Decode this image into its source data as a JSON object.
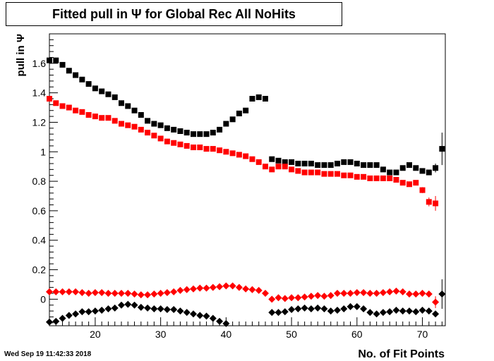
{
  "title": "Fitted pull in  Ψ  for Global Rec All NoHits",
  "timestamp": "Wed Sep 19 11:42:33 2018",
  "chart_data": {
    "type": "scatter",
    "xlabel": "No. of Fit Points",
    "ylabel": "pull in  Ψ",
    "xlim": [
      13,
      73.5
    ],
    "ylim": [
      -0.18,
      1.8
    ],
    "xticks": [
      "20",
      "30",
      "40",
      "50",
      "60",
      "70"
    ],
    "yticks": [
      "0",
      "0.2",
      "0.4",
      "0.6",
      "0.8",
      "1",
      "1.2",
      "1.4",
      "1.6"
    ],
    "xtick_values": [
      20,
      30,
      40,
      50,
      60,
      70
    ],
    "ytick_values": [
      0,
      0.2,
      0.4,
      0.6,
      0.8,
      1,
      1.2,
      1.4,
      1.6
    ],
    "grid": false,
    "series": [
      {
        "marker": "square",
        "color": "#000000",
        "x": [
          13,
          14,
          15,
          16,
          17,
          18,
          19,
          20,
          21,
          22,
          23,
          24,
          25,
          26,
          27,
          28,
          29,
          30,
          31,
          32,
          33,
          34,
          35,
          36,
          37,
          38,
          39,
          40,
          41,
          42,
          43,
          44,
          45,
          46,
          47,
          48,
          49,
          50,
          51,
          52,
          53,
          54,
          55,
          56,
          57,
          58,
          59,
          60,
          61,
          62,
          63,
          64,
          65,
          66,
          67,
          68,
          69,
          70,
          71,
          72,
          73
        ],
        "y": [
          1.62,
          1.62,
          1.59,
          1.55,
          1.52,
          1.49,
          1.46,
          1.43,
          1.41,
          1.39,
          1.37,
          1.33,
          1.31,
          1.28,
          1.25,
          1.21,
          1.19,
          1.18,
          1.16,
          1.15,
          1.14,
          1.13,
          1.12,
          1.12,
          1.12,
          1.13,
          1.15,
          1.19,
          1.22,
          1.26,
          1.28,
          1.36,
          1.37,
          1.36,
          0.95,
          0.94,
          0.93,
          0.93,
          0.92,
          0.92,
          0.92,
          0.91,
          0.91,
          0.91,
          0.92,
          0.93,
          0.93,
          0.92,
          0.91,
          0.91,
          0.91,
          0.88,
          0.86,
          0.86,
          0.89,
          0.91,
          0.89,
          0.87,
          0.86,
          0.89,
          1.02
        ],
        "err": [
          0,
          0,
          0,
          0,
          0,
          0,
          0,
          0,
          0,
          0,
          0,
          0,
          0,
          0,
          0,
          0,
          0,
          0,
          0,
          0,
          0,
          0,
          0,
          0,
          0,
          0,
          0,
          0,
          0,
          0,
          0,
          0,
          0,
          0,
          0,
          0,
          0,
          0,
          0,
          0,
          0,
          0,
          0,
          0,
          0,
          0,
          0,
          0,
          0,
          0,
          0,
          0,
          0,
          0,
          0,
          0,
          0,
          0,
          0,
          0.03,
          0.11
        ]
      },
      {
        "marker": "square",
        "color": "#ff0000",
        "x": [
          13,
          14,
          15,
          16,
          17,
          18,
          19,
          20,
          21,
          22,
          23,
          24,
          25,
          26,
          27,
          28,
          29,
          30,
          31,
          32,
          33,
          34,
          35,
          36,
          37,
          38,
          39,
          40,
          41,
          42,
          43,
          44,
          45,
          46,
          47,
          48,
          49,
          50,
          51,
          52,
          53,
          54,
          55,
          56,
          57,
          58,
          59,
          60,
          61,
          62,
          63,
          64,
          65,
          66,
          67,
          68,
          69,
          70,
          71,
          72
        ],
        "y": [
          1.36,
          1.33,
          1.31,
          1.3,
          1.28,
          1.27,
          1.25,
          1.24,
          1.23,
          1.23,
          1.21,
          1.19,
          1.18,
          1.17,
          1.15,
          1.13,
          1.11,
          1.09,
          1.07,
          1.06,
          1.05,
          1.04,
          1.03,
          1.03,
          1.02,
          1.02,
          1.01,
          1.0,
          0.99,
          0.98,
          0.97,
          0.95,
          0.93,
          0.9,
          0.88,
          0.9,
          0.9,
          0.88,
          0.87,
          0.86,
          0.86,
          0.86,
          0.85,
          0.85,
          0.85,
          0.84,
          0.84,
          0.83,
          0.83,
          0.82,
          0.82,
          0.82,
          0.82,
          0.81,
          0.79,
          0.78,
          0.79,
          0.74,
          0.66,
          0.65
        ],
        "err": [
          0,
          0,
          0,
          0,
          0,
          0,
          0,
          0,
          0,
          0,
          0,
          0,
          0,
          0,
          0,
          0,
          0,
          0,
          0,
          0,
          0,
          0,
          0,
          0,
          0,
          0,
          0,
          0,
          0,
          0,
          0,
          0,
          0,
          0,
          0,
          0,
          0,
          0,
          0,
          0,
          0,
          0,
          0,
          0,
          0,
          0,
          0,
          0,
          0,
          0,
          0,
          0,
          0,
          0,
          0,
          0,
          0,
          0.02,
          0.03,
          0.05
        ]
      },
      {
        "marker": "diamond",
        "color": "#ff0000",
        "x": [
          13,
          14,
          15,
          16,
          17,
          18,
          19,
          20,
          21,
          22,
          23,
          24,
          25,
          26,
          27,
          28,
          29,
          30,
          31,
          32,
          33,
          34,
          35,
          36,
          37,
          38,
          39,
          40,
          41,
          42,
          43,
          44,
          45,
          46,
          47,
          48,
          49,
          50,
          51,
          52,
          53,
          54,
          55,
          56,
          57,
          58,
          59,
          60,
          61,
          62,
          63,
          64,
          65,
          66,
          67,
          68,
          69,
          70,
          71,
          72
        ],
        "y": [
          0.05,
          0.05,
          0.05,
          0.05,
          0.05,
          0.045,
          0.04,
          0.045,
          0.045,
          0.04,
          0.04,
          0.04,
          0.04,
          0.035,
          0.03,
          0.03,
          0.035,
          0.04,
          0.045,
          0.05,
          0.06,
          0.065,
          0.07,
          0.075,
          0.075,
          0.08,
          0.085,
          0.09,
          0.09,
          0.08,
          0.07,
          0.065,
          0.06,
          0.04,
          0.0,
          0.01,
          0.005,
          0.01,
          0.01,
          0.015,
          0.02,
          0.025,
          0.02,
          0.025,
          0.04,
          0.04,
          0.04,
          0.045,
          0.045,
          0.04,
          0.04,
          0.045,
          0.05,
          0.055,
          0.05,
          0.035,
          0.035,
          0.04,
          0.035,
          -0.02
        ],
        "err": [
          0,
          0,
          0,
          0,
          0,
          0,
          0,
          0,
          0,
          0,
          0,
          0,
          0,
          0,
          0,
          0,
          0,
          0,
          0,
          0,
          0,
          0,
          0,
          0,
          0,
          0,
          0,
          0,
          0,
          0,
          0,
          0,
          0,
          0,
          0,
          0,
          0,
          0,
          0,
          0,
          0,
          0,
          0,
          0,
          0,
          0,
          0,
          0,
          0,
          0,
          0,
          0,
          0,
          0,
          0,
          0,
          0,
          0.01,
          0.02,
          0.04
        ]
      },
      {
        "marker": "diamond",
        "color": "#000000",
        "x": [
          13,
          14,
          15,
          16,
          17,
          18,
          19,
          20,
          21,
          22,
          23,
          24,
          25,
          26,
          27,
          28,
          29,
          30,
          31,
          32,
          33,
          34,
          35,
          36,
          37,
          38,
          39,
          40,
          47,
          48,
          49,
          50,
          51,
          52,
          53,
          54,
          55,
          56,
          57,
          58,
          59,
          60,
          61,
          62,
          63,
          64,
          65,
          66,
          67,
          68,
          69,
          70,
          71,
          72,
          73
        ],
        "y": [
          -0.155,
          -0.15,
          -0.13,
          -0.11,
          -0.1,
          -0.085,
          -0.085,
          -0.08,
          -0.075,
          -0.065,
          -0.06,
          -0.04,
          -0.035,
          -0.04,
          -0.055,
          -0.06,
          -0.065,
          -0.065,
          -0.07,
          -0.07,
          -0.08,
          -0.09,
          -0.1,
          -0.11,
          -0.115,
          -0.13,
          -0.15,
          -0.165,
          -0.09,
          -0.09,
          -0.085,
          -0.07,
          -0.065,
          -0.06,
          -0.065,
          -0.06,
          -0.065,
          -0.08,
          -0.075,
          -0.065,
          -0.05,
          -0.05,
          -0.065,
          -0.09,
          -0.1,
          -0.09,
          -0.085,
          -0.075,
          -0.08,
          -0.08,
          -0.085,
          -0.075,
          -0.08,
          -0.1,
          0.035
        ],
        "err": [
          0,
          0,
          0,
          0,
          0,
          0,
          0,
          0,
          0,
          0,
          0,
          0,
          0,
          0,
          0,
          0,
          0,
          0,
          0,
          0,
          0,
          0,
          0,
          0,
          0,
          0,
          0,
          0,
          0,
          0,
          0,
          0,
          0,
          0,
          0,
          0,
          0,
          0,
          0,
          0,
          0,
          0,
          0,
          0,
          0,
          0,
          0,
          0,
          0,
          0,
          0,
          0,
          0.01,
          0.02,
          0.1
        ]
      }
    ]
  }
}
